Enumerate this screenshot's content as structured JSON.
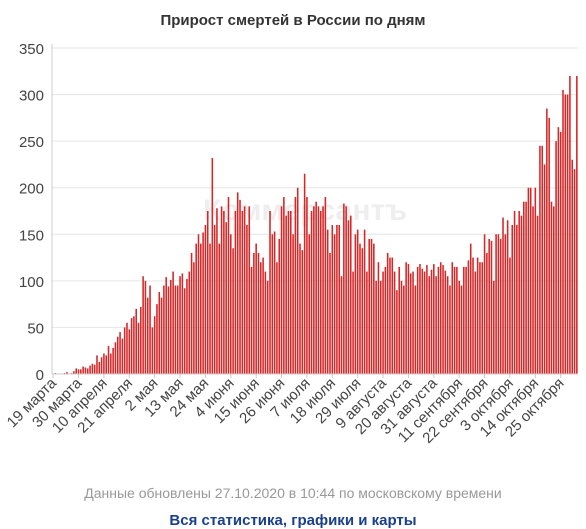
{
  "chart_data": {
    "type": "bar",
    "title": "Прирост смертей в России по дням",
    "xlabel": "",
    "ylabel": "",
    "ylim": [
      0,
      350
    ],
    "yticks": [
      0,
      50,
      100,
      150,
      200,
      250,
      300,
      350
    ],
    "grid": true,
    "legend": "none",
    "bar_color": "#d62728",
    "x_tick_labels": [
      "19 марта",
      "30 марта",
      "10 апреля",
      "21 апреля",
      "2 мая",
      "13 мая",
      "24 мая",
      "4 июня",
      "15 июня",
      "26 июня",
      "7 июля",
      "18 июля",
      "29 июля",
      "9 августа",
      "20 августа",
      "31 августа",
      "11 сентября",
      "22 сентября",
      "3 октября",
      "14 октября",
      "25 октября"
    ],
    "start_date": "2020-03-19",
    "end_date": "2020-10-27",
    "values": [
      0,
      1,
      0,
      0,
      0,
      1,
      2,
      0,
      1,
      3,
      6,
      5,
      5,
      8,
      7,
      6,
      9,
      11,
      10,
      20,
      13,
      18,
      22,
      20,
      30,
      22,
      28,
      34,
      40,
      45,
      38,
      50,
      55,
      48,
      60,
      62,
      70,
      55,
      72,
      105,
      100,
      82,
      95,
      50,
      62,
      75,
      88,
      82,
      95,
      104,
      94,
      101,
      110,
      95,
      95,
      105,
      108,
      92,
      102,
      110,
      130,
      120,
      140,
      150,
      140,
      152,
      160,
      175,
      140,
      232,
      160,
      178,
      140,
      180,
      175,
      163,
      190,
      150,
      135,
      175,
      195,
      187,
      175,
      180,
      160,
      180,
      115,
      130,
      140,
      130,
      120,
      125,
      110,
      100,
      175,
      150,
      153,
      120,
      145,
      180,
      190,
      170,
      175,
      175,
      150,
      190,
      200,
      140,
      133,
      215,
      190,
      150,
      175,
      180,
      185,
      180,
      175,
      180,
      190,
      155,
      130,
      160,
      150,
      160,
      160,
      105,
      183,
      180,
      165,
      170,
      110,
      150,
      155,
      140,
      135,
      155,
      110,
      145,
      145,
      140,
      100,
      120,
      100,
      110,
      115,
      130,
      125,
      125,
      110,
      90,
      115,
      100,
      95,
      120,
      118,
      108,
      110,
      95,
      115,
      118,
      113,
      110,
      117,
      105,
      112,
      118,
      105,
      115,
      120,
      117,
      111,
      105,
      95,
      120,
      115,
      115,
      100,
      95,
      115,
      115,
      122,
      140,
      125,
      110,
      125,
      120,
      120,
      150,
      130,
      145,
      143,
      100,
      150,
      150,
      145,
      168,
      150,
      165,
      125,
      160,
      175,
      160,
      175,
      170,
      185,
      185,
      200,
      200,
      180,
      200,
      170,
      245,
      245,
      225,
      285,
      275,
      185,
      180,
      250,
      265,
      260,
      305,
      300,
      300,
      320,
      230,
      220,
      320
    ]
  },
  "footer": {
    "updated": "Данные обновлены 27.10.2020 в 10:44 по московскому времени",
    "link": "Вся статистика, графики и карты"
  },
  "watermark": "Коммерсантъ"
}
